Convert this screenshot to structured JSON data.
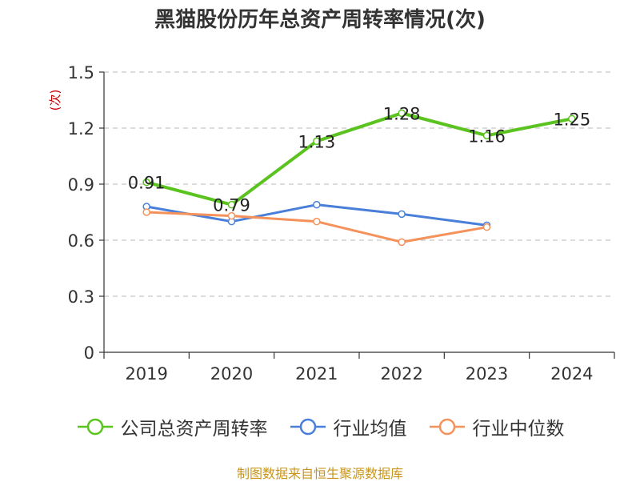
{
  "chart_data": {
    "type": "line",
    "title": "黑猫股份历年总资产周转率情况(次)",
    "ylabel": "(次)",
    "xlabel": "",
    "categories": [
      "2019",
      "2020",
      "2021",
      "2022",
      "2023",
      "2024"
    ],
    "ylim": [
      0,
      1.5
    ],
    "yticks": [
      "0",
      "0.3",
      "0.6",
      "0.9",
      "1.2",
      "1.5"
    ],
    "grid": true,
    "legend_position": "bottom",
    "series": [
      {
        "name": "公司总资产周转率",
        "color": "#5bc31f",
        "values": [
          0.91,
          0.79,
          1.13,
          1.28,
          1.16,
          1.25
        ],
        "labels": [
          "0.91",
          "0.79",
          "1.13",
          "1.28",
          "1.16",
          "1.25"
        ]
      },
      {
        "name": "行业均值",
        "color": "#4a7fd9",
        "values": [
          0.78,
          0.7,
          0.79,
          0.74,
          0.68,
          null
        ]
      },
      {
        "name": "行业中位数",
        "color": "#f5915a",
        "values": [
          0.75,
          0.73,
          0.7,
          0.59,
          0.67,
          null
        ]
      }
    ]
  },
  "source_text": "制图数据来自恒生聚源数据库"
}
